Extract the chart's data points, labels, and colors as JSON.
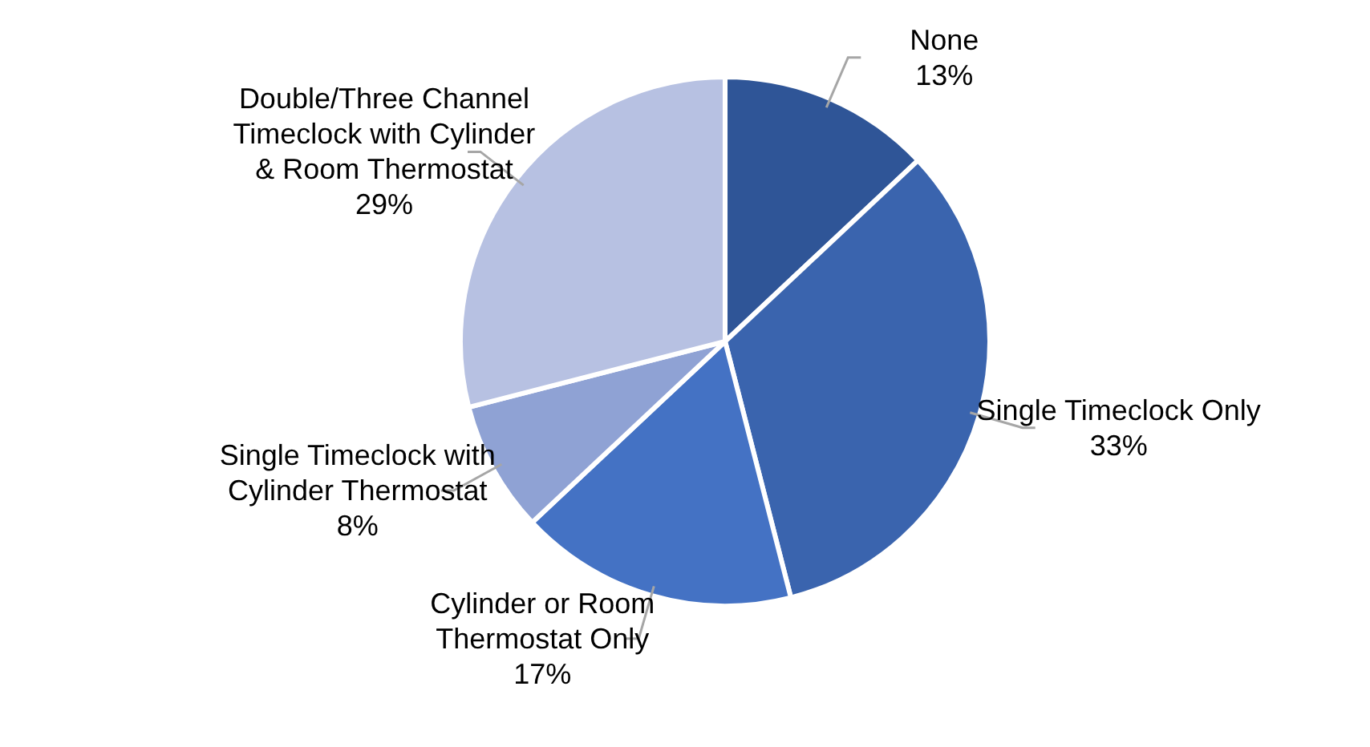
{
  "chart_data": {
    "type": "pie",
    "categories": [
      "None",
      "Single Timeclock Only",
      "Cylinder or Room Thermostat Only",
      "Single Timeclock with Cylinder Thermostat",
      "Double/Three Channel Timeclock with Cylinder & Room Thermostat"
    ],
    "values": [
      13,
      33,
      17,
      8,
      29
    ],
    "value_labels": [
      "13%",
      "33%",
      "17%",
      "8%",
      "29%"
    ],
    "colors": [
      "#2f5597",
      "#3a64ae",
      "#4472c4",
      "#8fa2d4",
      "#b7c1e2"
    ],
    "legend": false
  }
}
